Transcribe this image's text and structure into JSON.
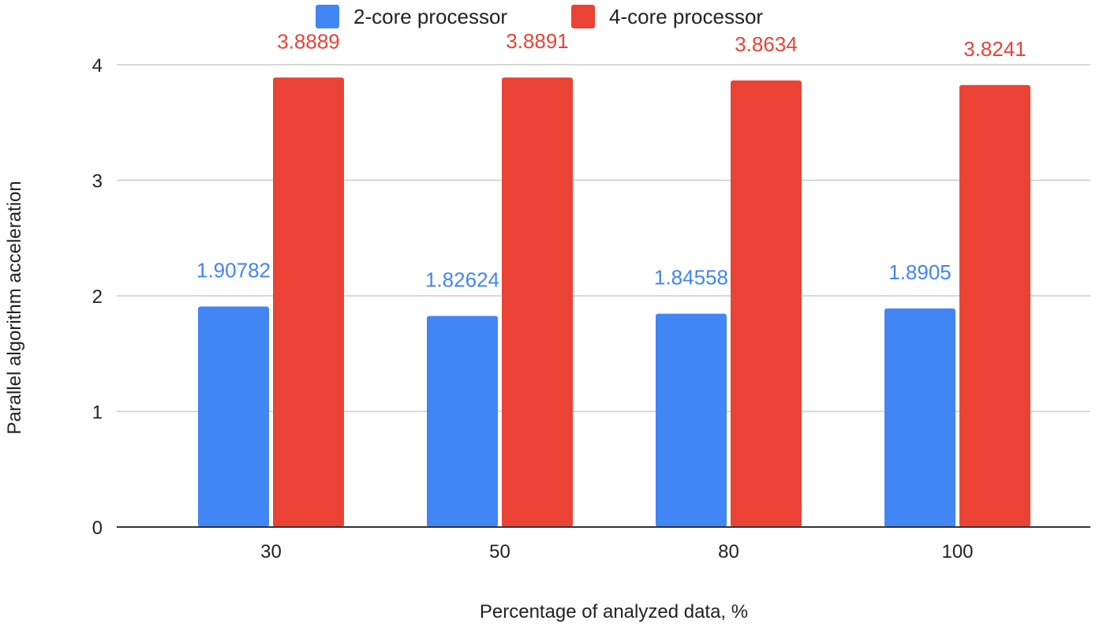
{
  "chart_data": {
    "type": "bar",
    "title": "",
    "xlabel": "Percentage of analyzed data, %",
    "ylabel": "Parallel algorithm acceleration",
    "categories": [
      "30",
      "50",
      "80",
      "100"
    ],
    "ylim": [
      0,
      4
    ],
    "yticks": [
      0,
      1,
      2,
      3,
      4
    ],
    "ytick_labels": [
      "0",
      "1",
      "2",
      "3",
      "4"
    ],
    "grid": true,
    "legend_position": "top-center",
    "series": [
      {
        "name": "2-core processor",
        "color": "#4285f4",
        "values": [
          1.90782,
          1.82624,
          1.84558,
          1.8905
        ],
        "labels": [
          "1.90782",
          "1.82624",
          "1.84558",
          "1.8905"
        ]
      },
      {
        "name": "4-core processor",
        "color": "#ea4335",
        "values": [
          3.8889,
          3.8891,
          3.8634,
          3.8241
        ],
        "labels": [
          "3.8889",
          "3.8891",
          "3.8634",
          "3.8241"
        ]
      }
    ]
  }
}
